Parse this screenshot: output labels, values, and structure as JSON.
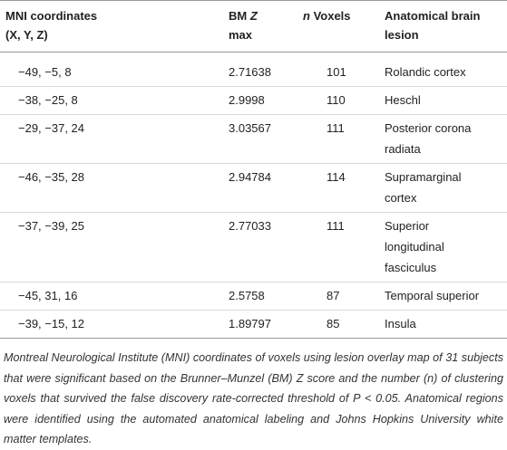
{
  "table": {
    "header": [
      [
        {
          "text": "MNI coordinates (X, Y, Z)"
        }
      ],
      [
        {
          "text": "BM "
        },
        {
          "text": "Z",
          "italic": true
        },
        {
          "text": " max"
        }
      ],
      [
        {
          "text": "n",
          "italic": true
        },
        {
          "text": " Voxels"
        }
      ],
      [
        {
          "text": "Anatomical brain lesion"
        }
      ]
    ],
    "rows": [
      [
        "−49, −5, 8",
        2.71638,
        101,
        "Rolandic cortex"
      ],
      [
        "−38, −25, 8",
        2.9998,
        110,
        "Heschl"
      ],
      [
        "−29, −37, 24",
        3.03567,
        111,
        "Posterior corona radiata"
      ],
      [
        "−46, −35, 28",
        2.94784,
        114,
        "Supramarginal cortex"
      ],
      [
        "−37, −39, 25",
        2.77033,
        111,
        "Superior longitudinal fasciculus"
      ],
      [
        "−45, 31, 16",
        2.5758,
        87,
        "Temporal superior"
      ],
      [
        "−39, −15, 12",
        1.89797,
        85,
        "Insula"
      ]
    ],
    "note": "Montreal Neurological Institute (MNI) coordinates of voxels using lesion overlay map of 31 subjects that were significant based on the Brunner–Munzel (BM) Z score and the number (n) of clustering voxels that survived the false discovery rate-corrected threshold of P < 0.05. Anatomical regions were identified using the automated anatomical labeling and Johns Hopkins University white matter templates."
  }
}
